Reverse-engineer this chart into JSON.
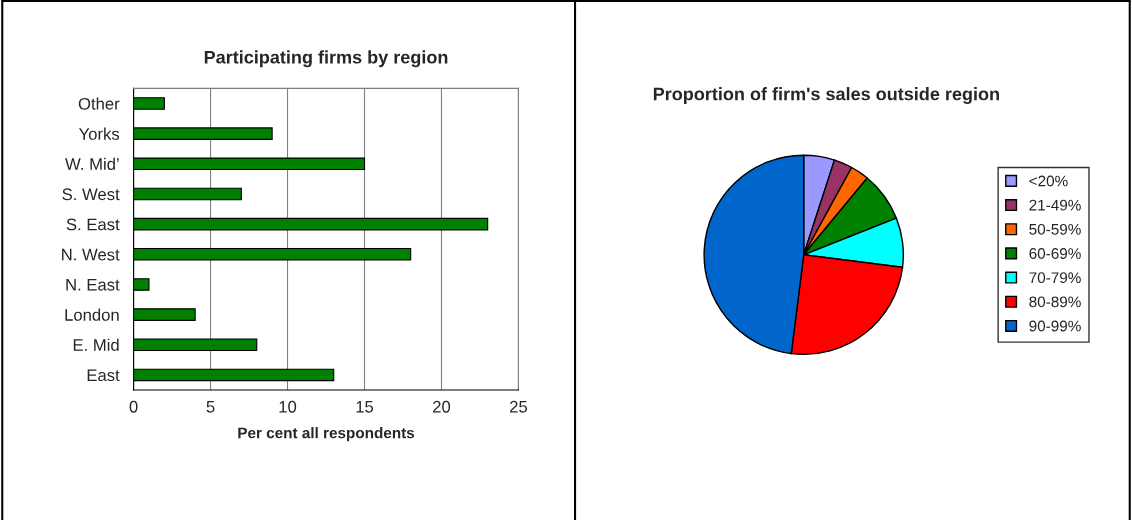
{
  "chart_data": [
    {
      "type": "bar",
      "orientation": "horizontal",
      "title": "Participating firms by region",
      "xlabel": "Per cent all respondents",
      "categories": [
        "Other",
        "Yorks",
        "W. Mid’",
        "S. West",
        "S. East",
        "N. West",
        "N. East",
        "London",
        "E. Mid",
        "East"
      ],
      "values": [
        2,
        9,
        15,
        7,
        23,
        18,
        1,
        4,
        8,
        13
      ],
      "color": "#008000",
      "xlim": [
        0,
        25
      ],
      "xticks": [
        0,
        5,
        10,
        15,
        20,
        25
      ],
      "grid": "x"
    },
    {
      "type": "pie",
      "title": "Proportion of firm's sales outside region",
      "categories": [
        "<20%",
        "21-49%",
        "50-59%",
        "60-69%",
        "70-79%",
        "80-89%",
        "90-99%"
      ],
      "values": [
        5,
        3,
        3,
        8,
        8,
        25,
        48
      ],
      "colors": [
        "#9999ff",
        "#993366",
        "#ff6600",
        "#008000",
        "#00ffff",
        "#ff0000",
        "#0066cc"
      ],
      "legend": "right"
    }
  ]
}
